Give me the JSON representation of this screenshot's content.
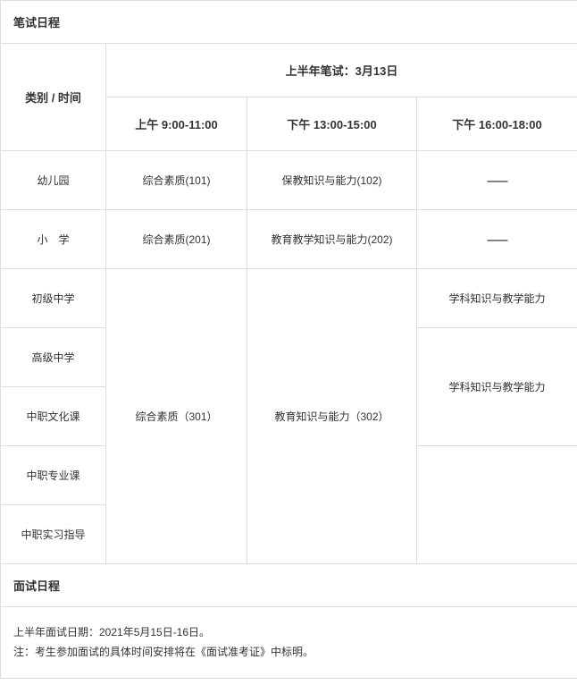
{
  "written": {
    "section_title": "笔试日程",
    "category_header": "类别  /  时间",
    "exam_date_header": "上半年笔试：3月13日",
    "time_slots": {
      "morning": "上午 9:00-11:00",
      "afternoon1": "下午 13:00-15:00",
      "afternoon2": "下午 16:00-18:00"
    },
    "rows": {
      "kindergarten": {
        "label": "幼儿园",
        "morning": "综合素质(101)",
        "afternoon1": "保教知识与能力(102)",
        "afternoon2": "——"
      },
      "primary": {
        "label": "小　学",
        "morning": "综合素质(201)",
        "afternoon1": "教育教学知识与能力(202)",
        "afternoon2": "——"
      },
      "junior_high": {
        "label": "初级中学",
        "afternoon2": "学科知识与教学能力"
      },
      "senior_high": {
        "label": "高级中学",
        "afternoon2": "学科知识与教学能力"
      },
      "vocational_culture": {
        "label": "中职文化课"
      },
      "vocational_major": {
        "label": "中职专业课"
      },
      "vocational_intern": {
        "label": "中职实习指导"
      },
      "merged_301": {
        "morning": "综合素质（301）",
        "afternoon1": "教育知识与能力（302）"
      }
    }
  },
  "interview": {
    "section_title": "面试日程",
    "line1": "上半年面试日期：2021年5月15日-16日。",
    "line2": "注：考生参加面试的具体时间安排将在《面试准考证》中标明。"
  }
}
